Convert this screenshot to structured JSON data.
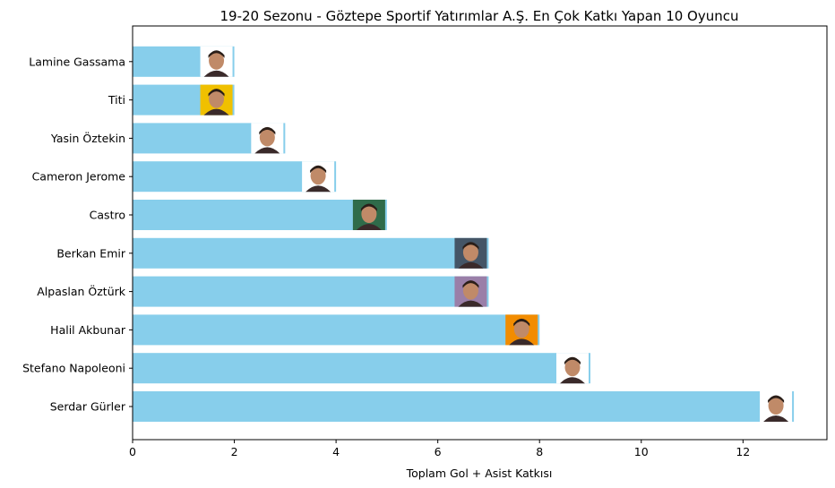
{
  "chart_data": {
    "type": "bar",
    "orientation": "horizontal",
    "title": "19-20 Sezonu - Göztepe Sportif Yatırımlar A.Ş. En Çok Katkı Yapan 10 Oyuncu",
    "xlabel": "Toplam Gol + Asist Katkısı",
    "ylabel": "",
    "xlim": [
      0,
      13.65
    ],
    "xticks": [
      0,
      2,
      4,
      6,
      8,
      10,
      12
    ],
    "grid": false,
    "bar_color": "#87ceeb",
    "categories": [
      "Serdar Gürler",
      "Stefano Napoleoni",
      "Halil Akbunar",
      "Alpaslan Öztürk",
      "Berkan Emir",
      "Castro",
      "Cameron Jerome",
      "Yasin Öztekin",
      "Titi",
      "Lamine Gassama"
    ],
    "values": [
      13,
      9,
      8,
      7,
      7,
      5,
      4,
      3,
      2,
      2
    ],
    "photo_backgrounds": [
      "#ffffff",
      "#ffffff",
      "#f28c00",
      "#9a7fa8",
      "#445566",
      "#2f6b4a",
      "#ffffff",
      "#ffffff",
      "#f0c000",
      "#ffffff"
    ]
  }
}
